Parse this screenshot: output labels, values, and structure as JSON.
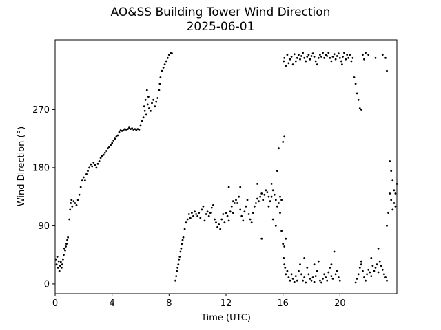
{
  "chart_data": {
    "type": "scatter",
    "title": "AO&SS Building Tower Wind Direction",
    "subtitle": "2025-06-01",
    "xlabel": "Time (UTC)",
    "ylabel": "Wind Direction (°)",
    "xlim": [
      0,
      24
    ],
    "ylim": [
      -15,
      378
    ],
    "xticks": [
      0,
      4,
      8,
      12,
      16,
      20
    ],
    "yticks": [
      0,
      90,
      180,
      270
    ],
    "grid": false,
    "legend": "none",
    "marker_color": "#000000",
    "points": [
      [
        0.05,
        38
      ],
      [
        0.1,
        30
      ],
      [
        0.15,
        42
      ],
      [
        0.2,
        25
      ],
      [
        0.25,
        35
      ],
      [
        0.3,
        20
      ],
      [
        0.35,
        28
      ],
      [
        0.4,
        34
      ],
      [
        0.45,
        25
      ],
      [
        0.5,
        30
      ],
      [
        0.55,
        38
      ],
      [
        0.6,
        45
      ],
      [
        0.65,
        55
      ],
      [
        0.7,
        52
      ],
      [
        0.75,
        58
      ],
      [
        0.8,
        62
      ],
      [
        0.85,
        68
      ],
      [
        0.9,
        72
      ],
      [
        1.0,
        100
      ],
      [
        1.05,
        115
      ],
      [
        1.1,
        125
      ],
      [
        1.15,
        130
      ],
      [
        1.2,
        120
      ],
      [
        1.3,
        128
      ],
      [
        1.4,
        125
      ],
      [
        1.5,
        122
      ],
      [
        1.6,
        130
      ],
      [
        1.7,
        138
      ],
      [
        1.8,
        150
      ],
      [
        1.9,
        160
      ],
      [
        2.0,
        165
      ],
      [
        2.1,
        160
      ],
      [
        2.2,
        170
      ],
      [
        2.3,
        175
      ],
      [
        2.4,
        180
      ],
      [
        2.5,
        185
      ],
      [
        2.6,
        182
      ],
      [
        2.7,
        188
      ],
      [
        2.8,
        184
      ],
      [
        2.9,
        180
      ],
      [
        3.0,
        186
      ],
      [
        3.1,
        190
      ],
      [
        3.2,
        195
      ],
      [
        3.3,
        198
      ],
      [
        3.4,
        200
      ],
      [
        3.5,
        203
      ],
      [
        3.6,
        206
      ],
      [
        3.7,
        210
      ],
      [
        3.8,
        212
      ],
      [
        3.9,
        215
      ],
      [
        4.0,
        218
      ],
      [
        4.1,
        222
      ],
      [
        4.2,
        225
      ],
      [
        4.3,
        228
      ],
      [
        4.4,
        230
      ],
      [
        4.5,
        235
      ],
      [
        4.6,
        238
      ],
      [
        4.7,
        237
      ],
      [
        4.8,
        238
      ],
      [
        4.9,
        240
      ],
      [
        5.0,
        239
      ],
      [
        5.1,
        240
      ],
      [
        5.2,
        242
      ],
      [
        5.3,
        240
      ],
      [
        5.4,
        241
      ],
      [
        5.5,
        239
      ],
      [
        5.6,
        240
      ],
      [
        5.7,
        238
      ],
      [
        5.8,
        240
      ],
      [
        5.9,
        239
      ],
      [
        6.0,
        245
      ],
      [
        6.1,
        252
      ],
      [
        6.2,
        258
      ],
      [
        6.25,
        275
      ],
      [
        6.3,
        268
      ],
      [
        6.35,
        285
      ],
      [
        6.4,
        262
      ],
      [
        6.45,
        300
      ],
      [
        6.5,
        278
      ],
      [
        6.55,
        290
      ],
      [
        6.6,
        272
      ],
      [
        6.7,
        268
      ],
      [
        6.8,
        280
      ],
      [
        6.9,
        285
      ],
      [
        7.0,
        275
      ],
      [
        7.1,
        282
      ],
      [
        7.2,
        288
      ],
      [
        7.3,
        300
      ],
      [
        7.35,
        310
      ],
      [
        7.4,
        320
      ],
      [
        7.5,
        330
      ],
      [
        7.6,
        335
      ],
      [
        7.7,
        340
      ],
      [
        7.8,
        345
      ],
      [
        7.9,
        350
      ],
      [
        8.0,
        355
      ],
      [
        8.1,
        358
      ],
      [
        8.2,
        357
      ],
      [
        8.45,
        5
      ],
      [
        8.5,
        12
      ],
      [
        8.55,
        20
      ],
      [
        8.6,
        25
      ],
      [
        8.65,
        30
      ],
      [
        8.7,
        38
      ],
      [
        8.75,
        42
      ],
      [
        8.8,
        50
      ],
      [
        8.85,
        55
      ],
      [
        8.9,
        62
      ],
      [
        8.95,
        68
      ],
      [
        9.0,
        72
      ],
      [
        9.1,
        85
      ],
      [
        9.2,
        95
      ],
      [
        9.3,
        100
      ],
      [
        9.4,
        108
      ],
      [
        9.5,
        102
      ],
      [
        9.6,
        110
      ],
      [
        9.7,
        105
      ],
      [
        9.8,
        112
      ],
      [
        9.9,
        108
      ],
      [
        10.0,
        105
      ],
      [
        10.1,
        110
      ],
      [
        10.2,
        102
      ],
      [
        10.3,
        115
      ],
      [
        10.4,
        120
      ],
      [
        10.5,
        98
      ],
      [
        10.6,
        108
      ],
      [
        10.7,
        112
      ],
      [
        10.8,
        105
      ],
      [
        10.9,
        110
      ],
      [
        11.0,
        118
      ],
      [
        11.1,
        122
      ],
      [
        11.2,
        100
      ],
      [
        11.3,
        95
      ],
      [
        11.4,
        88
      ],
      [
        11.5,
        92
      ],
      [
        11.6,
        85
      ],
      [
        11.7,
        100
      ],
      [
        11.8,
        108
      ],
      [
        11.9,
        95
      ],
      [
        12.0,
        110
      ],
      [
        12.1,
        105
      ],
      [
        12.2,
        98
      ],
      [
        12.3,
        112
      ],
      [
        12.4,
        120
      ],
      [
        12.5,
        128
      ],
      [
        12.6,
        125
      ],
      [
        12.7,
        130
      ],
      [
        12.8,
        125
      ],
      [
        12.9,
        135
      ],
      [
        13.0,
        115
      ],
      [
        13.1,
        105
      ],
      [
        13.2,
        98
      ],
      [
        13.3,
        112
      ],
      [
        13.4,
        120
      ],
      [
        13.5,
        130
      ],
      [
        13.6,
        108
      ],
      [
        13.7,
        100
      ],
      [
        13.8,
        95
      ],
      [
        13.9,
        110
      ],
      [
        14.0,
        120
      ],
      [
        14.1,
        125
      ],
      [
        14.2,
        132
      ],
      [
        14.3,
        128
      ],
      [
        14.4,
        135
      ],
      [
        14.5,
        140
      ],
      [
        14.6,
        130
      ],
      [
        14.7,
        138
      ],
      [
        14.8,
        145
      ],
      [
        14.9,
        142
      ],
      [
        15.0,
        135
      ],
      [
        15.1,
        128
      ],
      [
        15.2,
        135
      ],
      [
        15.3,
        145
      ],
      [
        15.4,
        138
      ],
      [
        15.5,
        130
      ],
      [
        15.6,
        120
      ],
      [
        15.7,
        125
      ],
      [
        15.8,
        135
      ],
      [
        15.9,
        130
      ],
      [
        12.2,
        150
      ],
      [
        12.5,
        110
      ],
      [
        13.0,
        150
      ],
      [
        14.2,
        155
      ],
      [
        14.5,
        70
      ],
      [
        15.2,
        155
      ],
      [
        15.0,
        120
      ],
      [
        15.3,
        100
      ],
      [
        15.5,
        90
      ],
      [
        15.6,
        175
      ],
      [
        15.7,
        210
      ],
      [
        15.8,
        110
      ],
      [
        16.0,
        220
      ],
      [
        16.1,
        228
      ],
      [
        15.9,
        82
      ],
      [
        16.0,
        62
      ],
      [
        16.1,
        58
      ],
      [
        16.2,
        70
      ],
      [
        16.05,
        40
      ],
      [
        16.1,
        30
      ],
      [
        16.15,
        25
      ],
      [
        16.2,
        15
      ],
      [
        16.3,
        20
      ],
      [
        16.4,
        10
      ],
      [
        16.5,
        5
      ],
      [
        16.6,
        15
      ],
      [
        16.7,
        8
      ],
      [
        16.8,
        3
      ],
      [
        16.9,
        12
      ],
      [
        17.0,
        5
      ],
      [
        17.1,
        20
      ],
      [
        17.2,
        30
      ],
      [
        17.3,
        15
      ],
      [
        17.4,
        5
      ],
      [
        17.5,
        10
      ],
      [
        17.6,
        2
      ],
      [
        17.7,
        25
      ],
      [
        17.8,
        15
      ],
      [
        17.9,
        8
      ],
      [
        18.0,
        5
      ],
      [
        18.1,
        10
      ],
      [
        18.2,
        3
      ],
      [
        18.3,
        12
      ],
      [
        18.4,
        20
      ],
      [
        18.5,
        35
      ],
      [
        18.6,
        5
      ],
      [
        18.7,
        2
      ],
      [
        18.8,
        8
      ],
      [
        18.9,
        15
      ],
      [
        19.0,
        10
      ],
      [
        19.1,
        5
      ],
      [
        19.2,
        18
      ],
      [
        19.3,
        25
      ],
      [
        19.4,
        12
      ],
      [
        19.5,
        8
      ],
      [
        19.6,
        50
      ],
      [
        19.7,
        15
      ],
      [
        19.8,
        20
      ],
      [
        19.9,
        10
      ],
      [
        20.0,
        5
      ],
      [
        17.5,
        40
      ],
      [
        18.2,
        30
      ],
      [
        19.4,
        30
      ],
      [
        16.05,
        345
      ],
      [
        16.1,
        350
      ],
      [
        16.2,
        338
      ],
      [
        16.3,
        355
      ],
      [
        16.4,
        342
      ],
      [
        16.5,
        348
      ],
      [
        16.6,
        352
      ],
      [
        16.7,
        340
      ],
      [
        16.8,
        356
      ],
      [
        16.9,
        345
      ],
      [
        17.0,
        350
      ],
      [
        17.1,
        355
      ],
      [
        17.2,
        348
      ],
      [
        17.3,
        353
      ],
      [
        17.4,
        358
      ],
      [
        17.5,
        350
      ],
      [
        17.6,
        345
      ],
      [
        17.7,
        352
      ],
      [
        17.8,
        355
      ],
      [
        17.9,
        348
      ],
      [
        18.0,
        353
      ],
      [
        18.1,
        357
      ],
      [
        18.2,
        352
      ],
      [
        18.3,
        345
      ],
      [
        18.4,
        340
      ],
      [
        18.5,
        350
      ],
      [
        18.6,
        355
      ],
      [
        18.7,
        352
      ],
      [
        18.8,
        358
      ],
      [
        18.9,
        350
      ],
      [
        19.0,
        355
      ],
      [
        19.1,
        353
      ],
      [
        19.2,
        358
      ],
      [
        19.3,
        350
      ],
      [
        19.4,
        345
      ],
      [
        19.5,
        352
      ],
      [
        19.6,
        356
      ],
      [
        19.7,
        348
      ],
      [
        19.8,
        353
      ],
      [
        19.9,
        357
      ],
      [
        20.0,
        350
      ],
      [
        20.1,
        345
      ],
      [
        20.15,
        340
      ],
      [
        20.2,
        352
      ],
      [
        20.3,
        358
      ],
      [
        20.4,
        348
      ],
      [
        20.5,
        355
      ],
      [
        20.6,
        350
      ],
      [
        20.7,
        355
      ],
      [
        20.8,
        345
      ],
      [
        20.9,
        350
      ],
      [
        21.0,
        320
      ],
      [
        21.1,
        310
      ],
      [
        21.2,
        295
      ],
      [
        21.3,
        285
      ],
      [
        21.4,
        272
      ],
      [
        21.5,
        270
      ],
      [
        21.6,
        355
      ],
      [
        21.7,
        348
      ],
      [
        21.8,
        358
      ],
      [
        22.0,
        355
      ],
      [
        22.5,
        350
      ],
      [
        23.0,
        355
      ],
      [
        23.2,
        350
      ],
      [
        23.3,
        330
      ],
      [
        21.1,
        2
      ],
      [
        21.2,
        8
      ],
      [
        21.3,
        15
      ],
      [
        21.4,
        25
      ],
      [
        21.5,
        30
      ],
      [
        21.6,
        20
      ],
      [
        21.7,
        10
      ],
      [
        21.8,
        5
      ],
      [
        21.9,
        15
      ],
      [
        22.0,
        22
      ],
      [
        22.1,
        18
      ],
      [
        22.2,
        12
      ],
      [
        22.3,
        28
      ],
      [
        22.4,
        20
      ],
      [
        22.5,
        25
      ],
      [
        22.6,
        30
      ],
      [
        22.7,
        18
      ],
      [
        22.8,
        35
      ],
      [
        22.9,
        28
      ],
      [
        23.0,
        22
      ],
      [
        23.1,
        15
      ],
      [
        23.2,
        10
      ],
      [
        23.3,
        5
      ],
      [
        22.7,
        55
      ],
      [
        21.5,
        35
      ],
      [
        22.2,
        40
      ],
      [
        23.3,
        90
      ],
      [
        23.4,
        110
      ],
      [
        23.5,
        140
      ],
      [
        23.6,
        130
      ],
      [
        23.7,
        115
      ],
      [
        23.8,
        125
      ],
      [
        23.9,
        120
      ],
      [
        23.5,
        190
      ],
      [
        23.6,
        175
      ],
      [
        23.7,
        160
      ],
      [
        23.8,
        145
      ],
      [
        23.9,
        140
      ],
      [
        24.0,
        155
      ]
    ]
  }
}
